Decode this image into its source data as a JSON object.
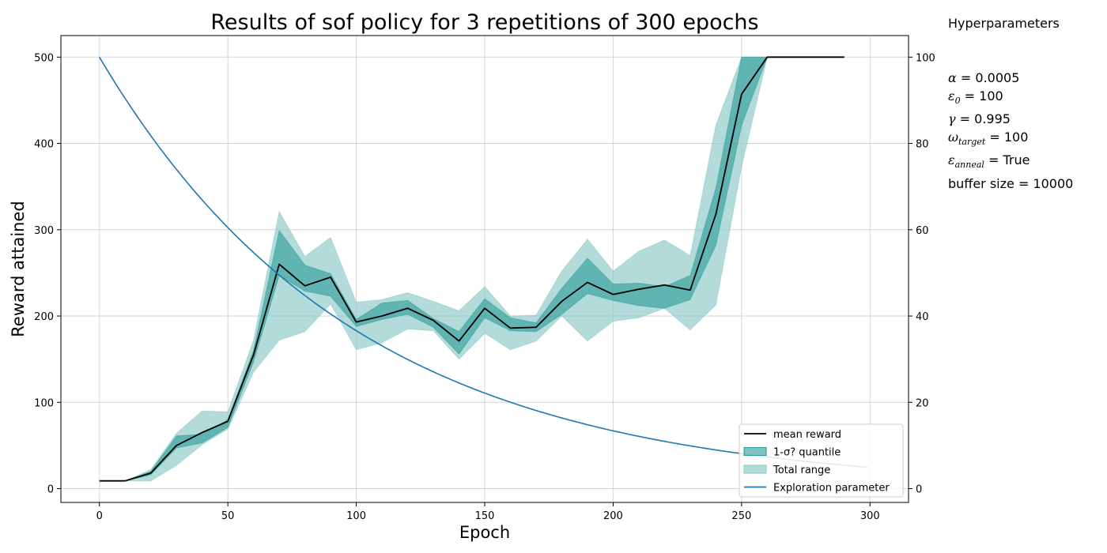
{
  "chart_data": {
    "type": "line",
    "title": "Results of sof policy for 3 repetitions of 300 epochs",
    "xlabel": "Epoch",
    "ylabel": "Reward attained",
    "y2label": "",
    "xlim": [
      -15,
      315
    ],
    "ylim": [
      -16,
      525
    ],
    "y2lim": [
      -3.2,
      105
    ],
    "xticks": [
      0,
      50,
      100,
      150,
      200,
      250,
      300
    ],
    "yticks": [
      0,
      100,
      200,
      300,
      400,
      500
    ],
    "y2ticks": [
      0,
      20,
      40,
      60,
      80,
      100
    ],
    "grid": true,
    "legend_position": "bottom-right",
    "legend": [
      {
        "label": "mean reward",
        "kind": "line",
        "color": "#000000"
      },
      {
        "label": "1-σ? quantile",
        "kind": "patch",
        "color": "#2a9a96"
      },
      {
        "label": "Total range",
        "kind": "patch",
        "color": "#88c8c5"
      },
      {
        "label": "Exploration parameter",
        "kind": "line",
        "color": "#1f77b4"
      }
    ],
    "x": [
      0,
      10,
      20,
      30,
      40,
      50,
      60,
      70,
      80,
      90,
      100,
      110,
      120,
      130,
      140,
      150,
      160,
      170,
      180,
      190,
      200,
      210,
      220,
      230,
      240,
      250,
      260,
      270,
      280,
      290
    ],
    "series": [
      {
        "name": "mean reward",
        "axis": "left",
        "color": "#000000",
        "values": [
          9,
          9,
          18,
          50,
          65,
          78,
          155,
          260,
          235,
          245,
          193,
          200,
          209,
          195,
          171,
          209,
          186,
          187,
          217,
          239,
          225,
          231,
          236,
          230,
          318,
          457,
          500,
          500,
          500,
          500
        ]
      },
      {
        "name": "1-σ? quantile",
        "axis": "left",
        "type": "band",
        "color": "#2a9a96",
        "opacity": 0.6,
        "lower": [
          9,
          9,
          16,
          47,
          53,
          71,
          147,
          247,
          229,
          223,
          188,
          196,
          202,
          187,
          156,
          198,
          183,
          182,
          202,
          226,
          218,
          212,
          209,
          219,
          282,
          421,
          500,
          500,
          500,
          500
        ],
        "upper": [
          9,
          9,
          20,
          61,
          63,
          80,
          160,
          299,
          259,
          249,
          196,
          215,
          218,
          197,
          182,
          220,
          198,
          192,
          232,
          267,
          237,
          238,
          234,
          247,
          348,
          500,
          500,
          500,
          500,
          500
        ]
      },
      {
        "name": "Total range",
        "axis": "left",
        "type": "band",
        "color": "#88c8c5",
        "opacity": 0.65,
        "lower": [
          9,
          9,
          9,
          27,
          51,
          69,
          135,
          172,
          182,
          214,
          161,
          169,
          185,
          183,
          150,
          180,
          161,
          171,
          200,
          171,
          194,
          198,
          209,
          184,
          213,
          373,
          500,
          500,
          500,
          500
        ],
        "upper": [
          9,
          9,
          22,
          64,
          90,
          89,
          172,
          321,
          269,
          291,
          216,
          219,
          227,
          217,
          206,
          234,
          200,
          201,
          252,
          289,
          252,
          275,
          288,
          270,
          421,
          500,
          500,
          500,
          500,
          500
        ]
      },
      {
        "name": "Exploration parameter",
        "axis": "right",
        "color": "#1f77b4",
        "function": "100 * 0.99 ^ epoch",
        "x_range": [
          0,
          299
        ]
      }
    ]
  },
  "hyperparameters": {
    "title": "Hyperparameters",
    "items": [
      {
        "symbol": "α",
        "sub": "",
        "value": " = 0.0005"
      },
      {
        "symbol": "ε",
        "sub": "0",
        "value": " = 100"
      },
      {
        "symbol": "γ",
        "sub": "",
        "value": " = 0.995"
      },
      {
        "symbol": "ω",
        "sub": "target",
        "value": " = 100"
      },
      {
        "symbol": "ε",
        "sub": "anneal",
        "value": " = True"
      },
      {
        "symbol": "",
        "sub": "",
        "value": "buffer size = 10000"
      }
    ]
  }
}
